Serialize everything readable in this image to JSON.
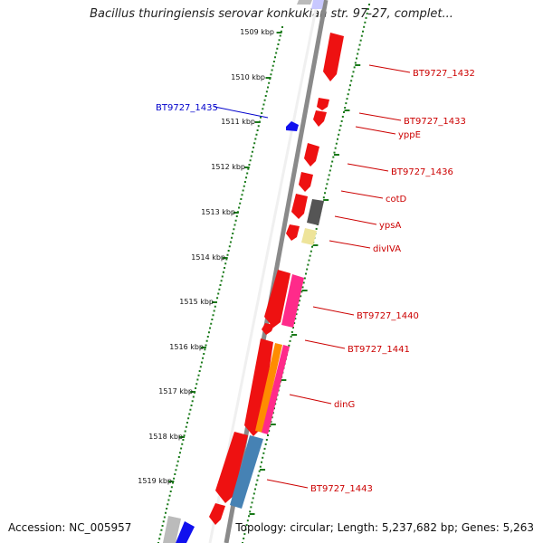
{
  "title": "Bacillus thuringiensis serovar konkukian str. 97-27, complet...",
  "footer": {
    "accession": "Accession: NC_005957",
    "topology": "Topology: circular; Length: 5,237,682 bp; Genes: 5,263"
  },
  "kbp_labels": [
    "1509 kbp",
    "1510 kbp",
    "1511 kbp",
    "1512 kbp",
    "1513 kbp",
    "1514 kbp",
    "1515 kbp",
    "1516 kbp",
    "1517 kbp",
    "1518 kbp",
    "1519 kbp"
  ],
  "gene_labels": [
    {
      "text": "BT9727_1432",
      "color": "#cc0000"
    },
    {
      "text": "BT9727_1435",
      "color": "#0000cc"
    },
    {
      "text": "BT9727_1433",
      "color": "#cc0000"
    },
    {
      "text": "yppE",
      "color": "#cc0000"
    },
    {
      "text": "BT9727_1436",
      "color": "#cc0000"
    },
    {
      "text": "cotD",
      "color": "#cc0000"
    },
    {
      "text": "ypsA",
      "color": "#cc0000"
    },
    {
      "text": "divIVA",
      "color": "#cc0000"
    },
    {
      "text": "BT9727_1440",
      "color": "#cc0000"
    },
    {
      "text": "BT9727_1441",
      "color": "#cc0000"
    },
    {
      "text": "dinG",
      "color": "#cc0000"
    },
    {
      "text": "BT9727_1443",
      "color": "#cc0000"
    }
  ],
  "colors": {
    "backbone": "#8a8a8a",
    "tick": "#1a7a1a",
    "red": "#ee1111",
    "blue": "#1111ee",
    "gray": "#555555",
    "yellow": "#eee49a",
    "pink": "#ff2a8a",
    "orange": "#ff8c00",
    "steel": "#4682b4"
  }
}
